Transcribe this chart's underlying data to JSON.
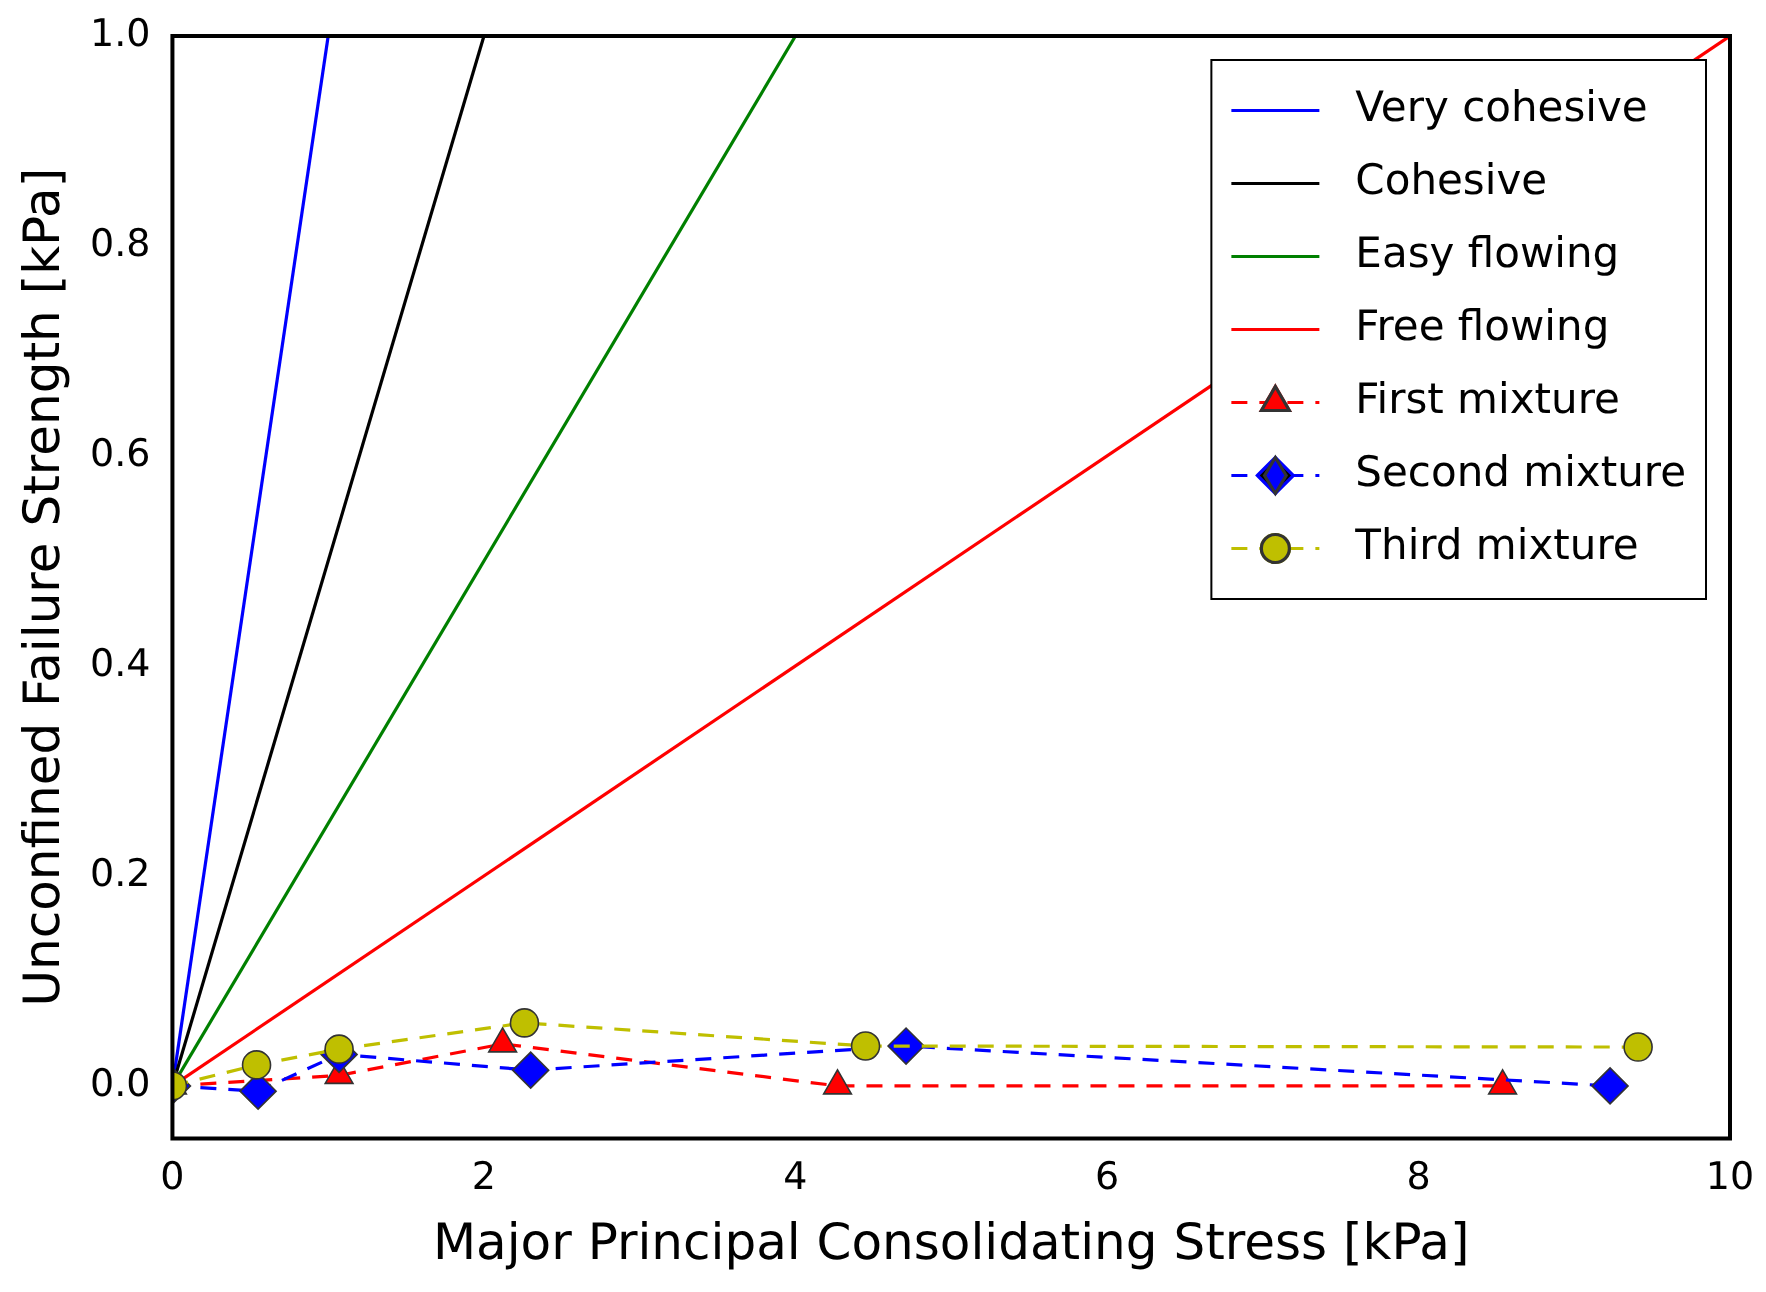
{
  "chart_data": {
    "type": "line",
    "xlabel": "Major Principal Consolidating Stress [kPa]",
    "ylabel": "Unconfined Failure Strength [kPa]",
    "xlim": [
      0,
      10
    ],
    "ylim": [
      -0.05,
      1.0
    ],
    "xticks": [
      0,
      2,
      4,
      6,
      8,
      10
    ],
    "yticks": [
      {
        "value": 0,
        "label": "0.0"
      },
      {
        "value": 0.2,
        "label": "0.2"
      },
      {
        "value": 0.4,
        "label": "0.4"
      },
      {
        "value": 0.6,
        "label": "0.6"
      },
      {
        "value": 0.8,
        "label": "0.8"
      },
      {
        "value": 1,
        "label": "1.0"
      }
    ],
    "grid": false,
    "legend": "top right",
    "series": [
      {
        "name": "Very cohesive",
        "color": "#0000ff",
        "x": [
          0,
          1
        ],
        "values": [
          0,
          1
        ],
        "line_style": "solid"
      },
      {
        "name": "Cohesive",
        "color": "#000000",
        "x": [
          0,
          2
        ],
        "values": [
          0,
          1
        ],
        "line_style": "solid"
      },
      {
        "name": "Easy flowing",
        "color": "#008000",
        "x": [
          0,
          4
        ],
        "values": [
          0,
          1
        ],
        "line_style": "solid"
      },
      {
        "name": "Free flowing",
        "color": "#ff0000",
        "x": [
          0,
          10
        ],
        "values": [
          0,
          1
        ],
        "line_style": "solid"
      },
      {
        "name": "First mixture",
        "color": "#ff0000",
        "x": [
          0,
          1.07,
          2.12,
          4.27,
          8.54
        ],
        "values": [
          0,
          0.01,
          0.04,
          0.0,
          0.0
        ],
        "marker": "triangle",
        "line_style": "dashed"
      },
      {
        "name": "Second mixture",
        "color": "#0000ff",
        "x": [
          0,
          0.55,
          1.07,
          2.3,
          4.71,
          9.23
        ],
        "values": [
          0,
          -0.005,
          0.03,
          0.015,
          0.038,
          0.0
        ],
        "marker": "diamond",
        "line_style": "dashed"
      },
      {
        "name": "Third mixture",
        "color": "#bfbf00",
        "x": [
          0,
          0.54,
          1.07,
          2.26,
          4.45,
          9.41
        ],
        "values": [
          0,
          0.02,
          0.035,
          0.06,
          0.038,
          0.037
        ],
        "marker": "circle",
        "line_style": "dashed"
      }
    ]
  }
}
